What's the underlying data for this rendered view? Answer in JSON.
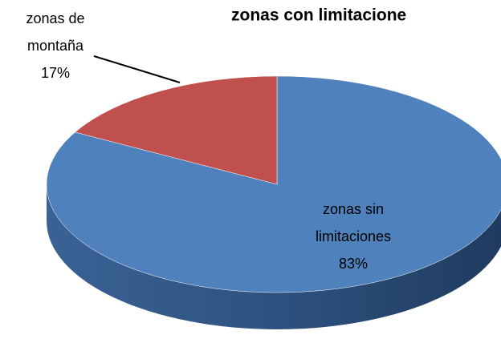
{
  "chart_data": {
    "type": "pie",
    "title": "zonas con limitacione",
    "categories": [
      "zonas sin limitaciones",
      "zonas de montaña"
    ],
    "values": [
      83,
      17
    ],
    "value_labels": [
      "83%",
      "17%"
    ],
    "colors": [
      "#4f81bd",
      "#c0504d"
    ]
  }
}
